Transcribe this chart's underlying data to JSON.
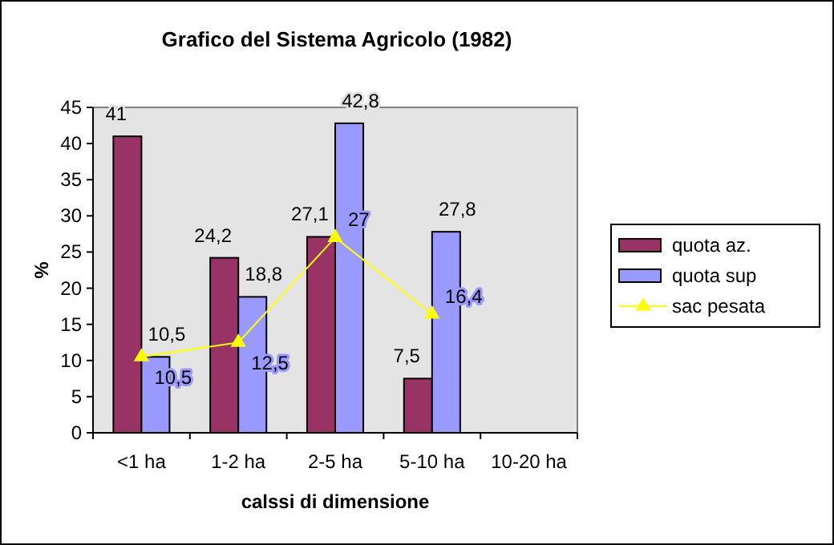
{
  "chart_data": {
    "type": "bar",
    "title": "Grafico del Sistema Agricolo (1982)",
    "xlabel": "calssi di dimensione",
    "ylabel": "%",
    "categories": [
      "<1 ha",
      "1-2 ha",
      "2-5 ha",
      "5-10 ha",
      "10-20 ha"
    ],
    "series": [
      {
        "name": "quota az.",
        "color": "#993366",
        "values": [
          41,
          24.2,
          27.1,
          7.5,
          null
        ],
        "value_labels": [
          "41",
          "24,2",
          "27,1",
          "7,5",
          null
        ]
      },
      {
        "name": "quota sup",
        "color": "#9999ff",
        "values": [
          10.5,
          18.8,
          42.8,
          27.8,
          null
        ],
        "value_labels": [
          "10,5",
          "18,8",
          "42,8",
          "27,8",
          null
        ]
      },
      {
        "name": "sac pesata",
        "type": "line",
        "color": "#ffff00",
        "marker": "triangle",
        "values": [
          10.5,
          12.5,
          27,
          16.4,
          null
        ],
        "value_labels": [
          "10,5",
          "12,5",
          "27",
          "16,4",
          null
        ]
      }
    ],
    "ylim": [
      0,
      45
    ],
    "yticks": [
      0,
      5,
      10,
      15,
      20,
      25,
      30,
      35,
      40,
      45
    ],
    "grid": false,
    "legend": "right"
  }
}
